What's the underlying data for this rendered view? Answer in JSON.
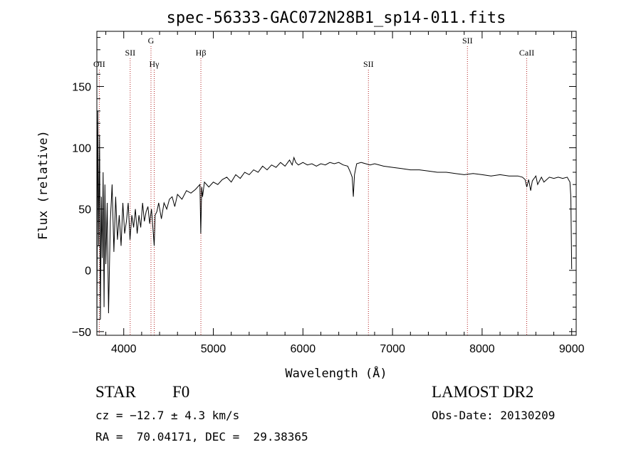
{
  "chart_data": {
    "type": "line",
    "title": "spec-56333-GAC072N28B1_sp14-011.fits",
    "xlabel": "Wavelength (Å)",
    "ylabel": "Flux (relative)",
    "xlim": [
      3700,
      9050
    ],
    "ylim": [
      -53,
      195
    ],
    "xticks": [
      4000,
      5000,
      6000,
      7000,
      8000,
      9000
    ],
    "yticks": [
      -50,
      0,
      50,
      100,
      150
    ],
    "grid": false,
    "line_color": "#000000",
    "marker_color": "#b22222",
    "lines": [
      {
        "label": "OII",
        "x": 3727,
        "row": 3
      },
      {
        "label": "SII",
        "x": 4072,
        "row": 2
      },
      {
        "label": "G",
        "x": 4304,
        "row": 1
      },
      {
        "label": "Hγ",
        "x": 4340,
        "row": 3
      },
      {
        "label": "Hβ",
        "x": 4861,
        "row": 2
      },
      {
        "label": "SII",
        "x": 6731,
        "row": 3
      },
      {
        "label": "SII",
        "x": 7836,
        "row": 1
      },
      {
        "label": "CaII",
        "x": 8498,
        "row": 2
      }
    ],
    "series": [
      {
        "x": [
          3700,
          3710,
          3720,
          3730,
          3740,
          3750,
          3760,
          3770,
          3780,
          3790,
          3800,
          3815,
          3830,
          3850,
          3870,
          3890,
          3910,
          3930,
          3950,
          3970,
          3990,
          4010,
          4030,
          4050,
          4070,
          4090,
          4110,
          4130,
          4150,
          4170,
          4190,
          4210,
          4230,
          4250,
          4270,
          4290,
          4300,
          4310,
          4330,
          4340,
          4350,
          4370,
          4390,
          4420,
          4450,
          4480,
          4510,
          4540,
          4570,
          4600,
          4650,
          4700,
          4750,
          4800,
          4850,
          4860,
          4870,
          4880,
          4900,
          4950,
          5000,
          5050,
          5100,
          5150,
          5200,
          5250,
          5300,
          5350,
          5400,
          5450,
          5500,
          5550,
          5600,
          5650,
          5700,
          5750,
          5800,
          5850,
          5880,
          5900,
          5920,
          5950,
          6000,
          6050,
          6100,
          6150,
          6200,
          6250,
          6300,
          6350,
          6400,
          6450,
          6500,
          6530,
          6550,
          6563,
          6575,
          6600,
          6650,
          6700,
          6750,
          6800,
          6900,
          7000,
          7100,
          7200,
          7300,
          7400,
          7500,
          7600,
          7700,
          7800,
          7900,
          8000,
          8100,
          8200,
          8300,
          8400,
          8450,
          8480,
          8498,
          8520,
          8542,
          8560,
          8600,
          8620,
          8662,
          8690,
          8750,
          8800,
          8850,
          8900,
          8950,
          8980,
          8990,
          9000
        ],
        "y": [
          -50,
          130,
          20,
          110,
          -40,
          60,
          10,
          80,
          -30,
          70,
          5,
          55,
          -35,
          40,
          70,
          15,
          60,
          25,
          45,
          20,
          55,
          30,
          40,
          55,
          25,
          45,
          35,
          50,
          30,
          45,
          35,
          55,
          40,
          48,
          52,
          38,
          45,
          50,
          30,
          20,
          45,
          48,
          55,
          42,
          55,
          50,
          58,
          60,
          52,
          62,
          58,
          65,
          63,
          66,
          70,
          30,
          68,
          60,
          72,
          68,
          72,
          70,
          74,
          76,
          72,
          78,
          75,
          80,
          78,
          82,
          80,
          85,
          82,
          86,
          84,
          88,
          85,
          90,
          86,
          92,
          88,
          86,
          88,
          86,
          87,
          85,
          87,
          86,
          88,
          87,
          88,
          86,
          85,
          80,
          76,
          60,
          78,
          87,
          88,
          87,
          86,
          87,
          85,
          84,
          83,
          82,
          82,
          81,
          80,
          80,
          79,
          78,
          79,
          78,
          77,
          78,
          77,
          77,
          76,
          74,
          68,
          74,
          65,
          73,
          77,
          70,
          76,
          72,
          76,
          75,
          76,
          75,
          76,
          72,
          60,
          1
        ]
      }
    ]
  },
  "info": {
    "object_type": "STAR",
    "subclass": "F0",
    "survey": "LAMOST DR2",
    "cz": "cz = −12.7 ± 4.3 km/s",
    "obs_date": "Obs-Date: 20130209",
    "coords": "RA =  70.04171, DEC =  29.38365"
  }
}
